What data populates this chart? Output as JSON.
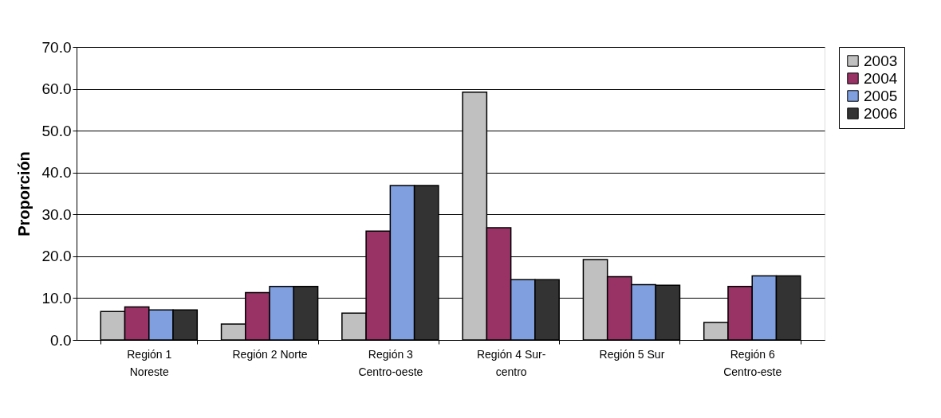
{
  "chart_data": {
    "type": "bar",
    "ylabel": "Proporción",
    "categories": [
      "Región 1 Noreste",
      "Región 2 Norte",
      "Región 3 Centro-oeste",
      "Región 4 Sur-centro",
      "Región 5 Sur",
      "Región 6 Centro-este"
    ],
    "series": [
      {
        "name": "2003",
        "color": "#c0c0c0",
        "values": [
          6.8,
          3.8,
          6.4,
          59.2,
          19.2,
          4.2
        ]
      },
      {
        "name": "2004",
        "color": "#993366",
        "values": [
          7.9,
          11.3,
          26.0,
          26.8,
          15.1,
          12.8
        ]
      },
      {
        "name": "2005",
        "color": "#7f9fdf",
        "values": [
          7.2,
          12.8,
          36.9,
          14.4,
          13.2,
          15.3
        ]
      },
      {
        "name": "2006",
        "color": "#333333",
        "values": [
          7.2,
          12.8,
          36.9,
          14.4,
          13.1,
          15.3
        ]
      }
    ],
    "ylim": [
      0,
      70
    ],
    "yticks": [
      {
        "value": 0,
        "label": "0.0"
      },
      {
        "value": 10,
        "label": "10.0"
      },
      {
        "value": 20,
        "label": "20.0"
      },
      {
        "value": 30,
        "label": "30.0"
      },
      {
        "value": 40,
        "label": "40.0"
      },
      {
        "value": 50,
        "label": "50.0"
      },
      {
        "value": 60,
        "label": "60.0"
      },
      {
        "value": 70,
        "label": "70.0"
      }
    ],
    "grid": "y",
    "legend": "right"
  }
}
